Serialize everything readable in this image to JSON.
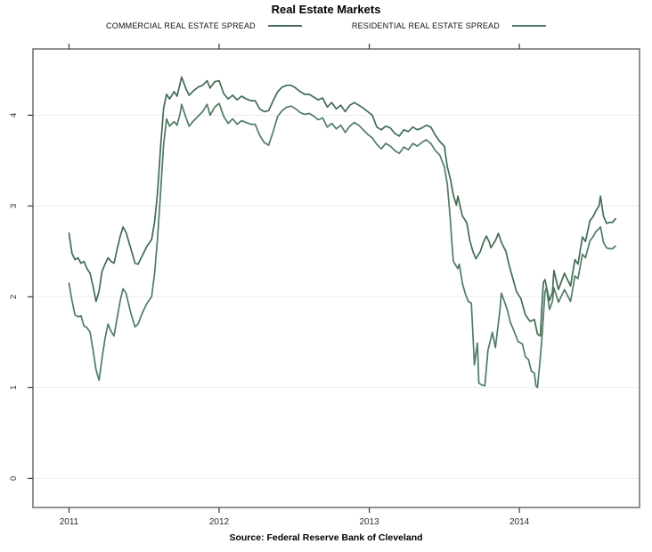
{
  "page": {
    "title": "Real Estate Markets",
    "source": "Source: Federal Reserve Bank of Cleveland"
  },
  "legend": {
    "items": [
      {
        "label": "COMMERCIAL REAL ESTATE SPREAD",
        "color": "#436b55"
      },
      {
        "label": "RESIDENTIAL REAL ESTATE SPREAD",
        "color": "#507b64"
      }
    ]
  },
  "chart_data": {
    "type": "line",
    "title": "Real Estate Markets",
    "xlabel": "",
    "ylabel": "",
    "x_ticks": [
      2011,
      2012,
      2013,
      2014
    ],
    "y_ticks": [
      0,
      1,
      2,
      3,
      4
    ],
    "xlim": [
      2010.76,
      2014.8
    ],
    "ylim": [
      -0.32,
      4.73
    ],
    "grid": "horizontal-only",
    "grid_color": "#ececec",
    "box_color": "#858585",
    "tick_color": "#3a3a3a",
    "tick_label_color": "#2b2b2b",
    "legend_position": "top-center",
    "source_note": "Source: Federal Reserve Bank of Cleveland",
    "series": [
      {
        "name": "COMMERCIAL REAL ESTATE SPREAD",
        "color": "#436b55",
        "points": [
          [
            2011.0,
            2.7
          ],
          [
            2011.02,
            2.48
          ],
          [
            2011.04,
            2.41
          ],
          [
            2011.06,
            2.43
          ],
          [
            2011.08,
            2.37
          ],
          [
            2011.1,
            2.39
          ],
          [
            2011.12,
            2.31
          ],
          [
            2011.14,
            2.26
          ],
          [
            2011.16,
            2.12
          ],
          [
            2011.18,
            1.95
          ],
          [
            2011.2,
            2.06
          ],
          [
            2011.22,
            2.28
          ],
          [
            2011.24,
            2.36
          ],
          [
            2011.26,
            2.43
          ],
          [
            2011.28,
            2.39
          ],
          [
            2011.3,
            2.37
          ],
          [
            2011.32,
            2.52
          ],
          [
            2011.34,
            2.66
          ],
          [
            2011.36,
            2.77
          ],
          [
            2011.38,
            2.71
          ],
          [
            2011.41,
            2.54
          ],
          [
            2011.44,
            2.37
          ],
          [
            2011.46,
            2.36
          ],
          [
            2011.49,
            2.46
          ],
          [
            2011.52,
            2.56
          ],
          [
            2011.55,
            2.63
          ],
          [
            2011.57,
            2.82
          ],
          [
            2011.59,
            3.15
          ],
          [
            2011.61,
            3.65
          ],
          [
            2011.63,
            4.08
          ],
          [
            2011.65,
            4.23
          ],
          [
            2011.67,
            4.18
          ],
          [
            2011.7,
            4.26
          ],
          [
            2011.72,
            4.21
          ],
          [
            2011.74,
            4.35
          ],
          [
            2011.75,
            4.42
          ],
          [
            2011.78,
            4.29
          ],
          [
            2011.8,
            4.22
          ],
          [
            2011.83,
            4.27
          ],
          [
            2011.86,
            4.31
          ],
          [
            2011.89,
            4.33
          ],
          [
            2011.92,
            4.38
          ],
          [
            2011.94,
            4.3
          ],
          [
            2011.97,
            4.37
          ],
          [
            2012.0,
            4.38
          ],
          [
            2012.03,
            4.24
          ],
          [
            2012.06,
            4.18
          ],
          [
            2012.09,
            4.22
          ],
          [
            2012.12,
            4.17
          ],
          [
            2012.15,
            4.21
          ],
          [
            2012.18,
            4.18
          ],
          [
            2012.21,
            4.16
          ],
          [
            2012.24,
            4.16
          ],
          [
            2012.27,
            4.07
          ],
          [
            2012.3,
            4.04
          ],
          [
            2012.33,
            4.05
          ],
          [
            2012.36,
            4.16
          ],
          [
            2012.39,
            4.26
          ],
          [
            2012.42,
            4.31
          ],
          [
            2012.45,
            4.33
          ],
          [
            2012.48,
            4.33
          ],
          [
            2012.51,
            4.3
          ],
          [
            2012.54,
            4.26
          ],
          [
            2012.57,
            4.23
          ],
          [
            2012.6,
            4.23
          ],
          [
            2012.63,
            4.2
          ],
          [
            2012.66,
            4.17
          ],
          [
            2012.69,
            4.19
          ],
          [
            2012.72,
            4.09
          ],
          [
            2012.75,
            4.14
          ],
          [
            2012.78,
            4.07
          ],
          [
            2012.81,
            4.11
          ],
          [
            2012.84,
            4.04
          ],
          [
            2012.87,
            4.11
          ],
          [
            2012.9,
            4.14
          ],
          [
            2012.93,
            4.11
          ],
          [
            2012.96,
            4.08
          ],
          [
            2012.99,
            4.04
          ],
          [
            2013.02,
            4.0
          ],
          [
            2013.05,
            3.87
          ],
          [
            2013.08,
            3.84
          ],
          [
            2013.11,
            3.88
          ],
          [
            2013.14,
            3.86
          ],
          [
            2013.17,
            3.8
          ],
          [
            2013.2,
            3.77
          ],
          [
            2013.23,
            3.84
          ],
          [
            2013.26,
            3.82
          ],
          [
            2013.29,
            3.87
          ],
          [
            2013.32,
            3.84
          ],
          [
            2013.35,
            3.86
          ],
          [
            2013.38,
            3.89
          ],
          [
            2013.41,
            3.87
          ],
          [
            2013.44,
            3.78
          ],
          [
            2013.47,
            3.71
          ],
          [
            2013.5,
            3.66
          ],
          [
            2013.52,
            3.43
          ],
          [
            2013.54,
            3.3
          ],
          [
            2013.56,
            3.12
          ],
          [
            2013.58,
            3.01
          ],
          [
            2013.59,
            3.11
          ],
          [
            2013.62,
            2.89
          ],
          [
            2013.64,
            2.84
          ],
          [
            2013.65,
            2.81
          ],
          [
            2013.67,
            2.62
          ],
          [
            2013.69,
            2.5
          ],
          [
            2013.71,
            2.42
          ],
          [
            2013.74,
            2.5
          ],
          [
            2013.76,
            2.6
          ],
          [
            2013.78,
            2.67
          ],
          [
            2013.8,
            2.6
          ],
          [
            2013.81,
            2.54
          ],
          [
            2013.84,
            2.62
          ],
          [
            2013.86,
            2.7
          ],
          [
            2013.88,
            2.6
          ],
          [
            2013.91,
            2.5
          ],
          [
            2013.93,
            2.36
          ],
          [
            2013.96,
            2.18
          ],
          [
            2013.98,
            2.06
          ],
          [
            2014.01,
            1.98
          ],
          [
            2014.04,
            1.8
          ],
          [
            2014.07,
            1.73
          ],
          [
            2014.1,
            1.75
          ],
          [
            2014.12,
            1.59
          ],
          [
            2014.14,
            1.57
          ],
          [
            2014.15,
            1.9
          ],
          [
            2014.16,
            2.16
          ],
          [
            2014.17,
            2.19
          ],
          [
            2014.2,
            1.96
          ],
          [
            2014.22,
            2.05
          ],
          [
            2014.23,
            2.29
          ],
          [
            2014.26,
            2.08
          ],
          [
            2014.3,
            2.26
          ],
          [
            2014.34,
            2.12
          ],
          [
            2014.37,
            2.41
          ],
          [
            2014.39,
            2.36
          ],
          [
            2014.42,
            2.66
          ],
          [
            2014.44,
            2.61
          ],
          [
            2014.47,
            2.84
          ],
          [
            2014.49,
            2.88
          ],
          [
            2014.51,
            2.95
          ],
          [
            2014.53,
            3.0
          ],
          [
            2014.54,
            3.11
          ],
          [
            2014.56,
            2.89
          ],
          [
            2014.58,
            2.81
          ],
          [
            2014.6,
            2.82
          ],
          [
            2014.62,
            2.82
          ],
          [
            2014.64,
            2.86
          ]
        ]
      },
      {
        "name": "RESIDENTIAL REAL ESTATE SPREAD",
        "color": "#507b64",
        "points": [
          [
            2011.0,
            2.15
          ],
          [
            2011.02,
            1.96
          ],
          [
            2011.04,
            1.8
          ],
          [
            2011.06,
            1.78
          ],
          [
            2011.08,
            1.79
          ],
          [
            2011.1,
            1.68
          ],
          [
            2011.12,
            1.66
          ],
          [
            2011.14,
            1.61
          ],
          [
            2011.16,
            1.42
          ],
          [
            2011.18,
            1.2
          ],
          [
            2011.2,
            1.08
          ],
          [
            2011.22,
            1.32
          ],
          [
            2011.24,
            1.54
          ],
          [
            2011.26,
            1.7
          ],
          [
            2011.28,
            1.62
          ],
          [
            2011.3,
            1.57
          ],
          [
            2011.32,
            1.76
          ],
          [
            2011.34,
            1.95
          ],
          [
            2011.36,
            2.09
          ],
          [
            2011.38,
            2.04
          ],
          [
            2011.41,
            1.83
          ],
          [
            2011.44,
            1.67
          ],
          [
            2011.46,
            1.7
          ],
          [
            2011.49,
            1.83
          ],
          [
            2011.52,
            1.93
          ],
          [
            2011.55,
            2.0
          ],
          [
            2011.57,
            2.25
          ],
          [
            2011.59,
            2.65
          ],
          [
            2011.61,
            3.15
          ],
          [
            2011.63,
            3.68
          ],
          [
            2011.65,
            3.96
          ],
          [
            2011.67,
            3.88
          ],
          [
            2011.7,
            3.93
          ],
          [
            2011.72,
            3.89
          ],
          [
            2011.74,
            4.02
          ],
          [
            2011.75,
            4.12
          ],
          [
            2011.78,
            3.97
          ],
          [
            2011.8,
            3.88
          ],
          [
            2011.83,
            3.94
          ],
          [
            2011.86,
            3.99
          ],
          [
            2011.89,
            4.04
          ],
          [
            2011.92,
            4.12
          ],
          [
            2011.94,
            4.0
          ],
          [
            2011.97,
            4.09
          ],
          [
            2012.0,
            4.13
          ],
          [
            2012.03,
            3.99
          ],
          [
            2012.06,
            3.91
          ],
          [
            2012.09,
            3.96
          ],
          [
            2012.12,
            3.9
          ],
          [
            2012.15,
            3.94
          ],
          [
            2012.18,
            3.92
          ],
          [
            2012.21,
            3.9
          ],
          [
            2012.24,
            3.9
          ],
          [
            2012.27,
            3.78
          ],
          [
            2012.3,
            3.7
          ],
          [
            2012.33,
            3.67
          ],
          [
            2012.36,
            3.82
          ],
          [
            2012.39,
            3.99
          ],
          [
            2012.42,
            4.05
          ],
          [
            2012.45,
            4.09
          ],
          [
            2012.48,
            4.1
          ],
          [
            2012.51,
            4.07
          ],
          [
            2012.54,
            4.03
          ],
          [
            2012.57,
            4.01
          ],
          [
            2012.6,
            4.02
          ],
          [
            2012.63,
            3.99
          ],
          [
            2012.66,
            3.95
          ],
          [
            2012.69,
            3.97
          ],
          [
            2012.72,
            3.87
          ],
          [
            2012.75,
            3.91
          ],
          [
            2012.78,
            3.85
          ],
          [
            2012.81,
            3.89
          ],
          [
            2012.84,
            3.81
          ],
          [
            2012.87,
            3.88
          ],
          [
            2012.9,
            3.92
          ],
          [
            2012.93,
            3.89
          ],
          [
            2012.96,
            3.84
          ],
          [
            2012.99,
            3.79
          ],
          [
            2013.02,
            3.75
          ],
          [
            2013.05,
            3.68
          ],
          [
            2013.08,
            3.63
          ],
          [
            2013.11,
            3.69
          ],
          [
            2013.14,
            3.66
          ],
          [
            2013.17,
            3.61
          ],
          [
            2013.2,
            3.58
          ],
          [
            2013.23,
            3.65
          ],
          [
            2013.26,
            3.62
          ],
          [
            2013.29,
            3.69
          ],
          [
            2013.32,
            3.66
          ],
          [
            2013.35,
            3.7
          ],
          [
            2013.38,
            3.73
          ],
          [
            2013.41,
            3.69
          ],
          [
            2013.44,
            3.61
          ],
          [
            2013.47,
            3.56
          ],
          [
            2013.5,
            3.43
          ],
          [
            2013.52,
            3.24
          ],
          [
            2013.54,
            2.85
          ],
          [
            2013.55,
            2.6
          ],
          [
            2013.56,
            2.39
          ],
          [
            2013.59,
            2.31
          ],
          [
            2013.6,
            2.36
          ],
          [
            2013.62,
            2.15
          ],
          [
            2013.64,
            2.03
          ],
          [
            2013.66,
            1.95
          ],
          [
            2013.68,
            1.93
          ],
          [
            2013.7,
            1.25
          ],
          [
            2013.72,
            1.49
          ],
          [
            2013.73,
            1.05
          ],
          [
            2013.75,
            1.03
          ],
          [
            2013.77,
            1.02
          ],
          [
            2013.79,
            1.41
          ],
          [
            2013.82,
            1.61
          ],
          [
            2013.84,
            1.44
          ],
          [
            2013.87,
            1.85
          ],
          [
            2013.88,
            2.04
          ],
          [
            2013.9,
            1.95
          ],
          [
            2013.92,
            1.85
          ],
          [
            2013.94,
            1.72
          ],
          [
            2013.96,
            1.64
          ],
          [
            2013.99,
            1.51
          ],
          [
            2014.02,
            1.48
          ],
          [
            2014.04,
            1.34
          ],
          [
            2014.06,
            1.31
          ],
          [
            2014.08,
            1.18
          ],
          [
            2014.1,
            1.16
          ],
          [
            2014.11,
            1.02
          ],
          [
            2014.12,
            1.0
          ],
          [
            2014.14,
            1.34
          ],
          [
            2014.15,
            1.54
          ],
          [
            2014.17,
            2.05
          ],
          [
            2014.18,
            2.1
          ],
          [
            2014.2,
            1.86
          ],
          [
            2014.22,
            1.95
          ],
          [
            2014.23,
            2.1
          ],
          [
            2014.26,
            1.94
          ],
          [
            2014.3,
            2.08
          ],
          [
            2014.34,
            1.95
          ],
          [
            2014.37,
            2.23
          ],
          [
            2014.39,
            2.2
          ],
          [
            2014.42,
            2.47
          ],
          [
            2014.44,
            2.43
          ],
          [
            2014.47,
            2.62
          ],
          [
            2014.49,
            2.66
          ],
          [
            2014.51,
            2.72
          ],
          [
            2014.53,
            2.75
          ],
          [
            2014.54,
            2.77
          ],
          [
            2014.56,
            2.6
          ],
          [
            2014.58,
            2.54
          ],
          [
            2014.6,
            2.53
          ],
          [
            2014.62,
            2.53
          ],
          [
            2014.64,
            2.56
          ]
        ]
      }
    ]
  }
}
